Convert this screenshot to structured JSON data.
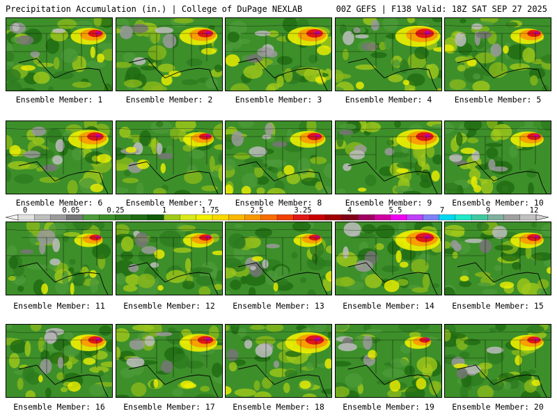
{
  "header": {
    "left": "Precipitation Accumulation (in.) | College of DuPage NEXLAB",
    "right": "00Z GEFS | F138 Valid: 18Z SAT SEP 27 2025"
  },
  "members": [
    {
      "label": "Ensemble Member: 1",
      "intensity": 0.75
    },
    {
      "label": "Ensemble Member: 2",
      "intensity": 0.8
    },
    {
      "label": "Ensemble Member: 3",
      "intensity": 0.85
    },
    {
      "label": "Ensemble Member: 4",
      "intensity": 0.95
    },
    {
      "label": "Ensemble Member: 5",
      "intensity": 0.7
    },
    {
      "label": "Ensemble Member: 6",
      "intensity": 0.85
    },
    {
      "label": "Ensemble Member: 7",
      "intensity": 0.65
    },
    {
      "label": "Ensemble Member: 8",
      "intensity": 0.75
    },
    {
      "label": "Ensemble Member: 9",
      "intensity": 0.9
    },
    {
      "label": "Ensemble Member: 10",
      "intensity": 0.7
    },
    {
      "label": "Ensemble Member: 11",
      "intensity": 0.6
    },
    {
      "label": "Ensemble Member: 12",
      "intensity": 0.65
    },
    {
      "label": "Ensemble Member: 13",
      "intensity": 0.6
    },
    {
      "label": "Ensemble Member: 14",
      "intensity": 0.95
    },
    {
      "label": "Ensemble Member: 15",
      "intensity": 0.7
    },
    {
      "label": "Ensemble Member: 16",
      "intensity": 0.75
    },
    {
      "label": "Ensemble Member: 17",
      "intensity": 0.8
    },
    {
      "label": "Ensemble Member: 18",
      "intensity": 0.95
    },
    {
      "label": "Ensemble Member: 19",
      "intensity": 0.55
    },
    {
      "label": "Ensemble Member: 20",
      "intensity": 0.7
    }
  ],
  "scale": {
    "labels": [
      "0",
      "0.05",
      "0.25",
      "1",
      "1.75",
      "2.5",
      "3.25",
      "4",
      "5.5",
      "7",
      "9",
      "12"
    ],
    "colors": [
      "#e0e0e0",
      "#bdbdbd",
      "#9a9a9a",
      "#767676",
      "#4c9a3a",
      "#3d8f2a",
      "#2d7a1f",
      "#1f6a12",
      "#0f5a08",
      "#a0c81a",
      "#d8e81a",
      "#f0f000",
      "#f8d800",
      "#f8b800",
      "#f89800",
      "#f86c00",
      "#f04000",
      "#e01818",
      "#c80000",
      "#a00000",
      "#800018",
      "#a00060",
      "#d000a0",
      "#f000f0",
      "#c040f8",
      "#8080f8",
      "#00d8f0",
      "#20e8c8",
      "#40c8a0",
      "#80b0a0",
      "#a0a0a0",
      "#c0c0c0"
    ]
  }
}
